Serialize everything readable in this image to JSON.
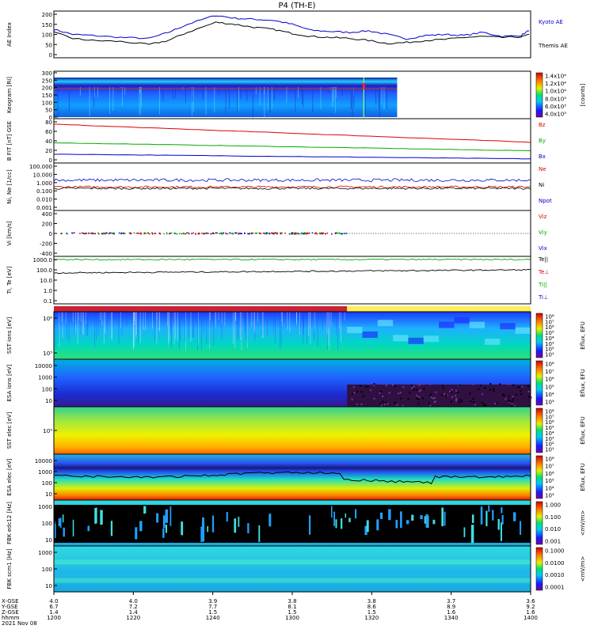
{
  "title": "P4 (TH-E)",
  "date_label": "2021 Nov 08",
  "colors": {
    "kyoto": "#0000cc",
    "themis": "#000000",
    "bz": "#dd0000",
    "by": "#00aa00",
    "bx": "#0000cc",
    "ne": "#dd0000",
    "ni": "#000000",
    "npot": "#0000cc",
    "vx": "#0000cc",
    "vy": "#00aa00",
    "vz": "#dd0000",
    "mode_fast": "#cc2233",
    "mode_slow": "#ffee55"
  },
  "chart_data": [
    {
      "name": "ae_index",
      "type": "line",
      "ylabel": "AE Index",
      "ylim": [
        0,
        200
      ],
      "yticks": [
        "200",
        "150",
        "100",
        "50",
        "0"
      ],
      "x": [
        0,
        4,
        8,
        14,
        20,
        24,
        28,
        34,
        38,
        42,
        46,
        50,
        54,
        58,
        62,
        66,
        70,
        74,
        78,
        82,
        86,
        90,
        94,
        98,
        100
      ],
      "series": [
        {
          "name": "Kyoto AE",
          "values": [
            125,
            100,
            95,
            85,
            80,
            110,
            150,
            195,
            180,
            175,
            170,
            150,
            120,
            115,
            110,
            118,
            100,
            78,
            95,
            100,
            95,
            110,
            90,
            95,
            125
          ]
        },
        {
          "name": "Themis AE",
          "values": [
            110,
            80,
            70,
            65,
            50,
            70,
            110,
            160,
            150,
            135,
            125,
            105,
            90,
            85,
            80,
            70,
            55,
            60,
            70,
            75,
            85,
            90,
            85,
            88,
            100
          ]
        }
      ]
    },
    {
      "name": "keogram",
      "type": "heatmap",
      "ylabel": "Keogram [RI]",
      "yticks": [
        "300",
        "250",
        "200",
        "150",
        "100",
        "50",
        "0"
      ],
      "colorbar": {
        "label": "[counts]",
        "ticks": [
          "1.4x10⁴",
          "1.2x10⁴",
          "1.0x10⁴",
          "8.0x10³",
          "6.0x10³",
          "4.0x10³"
        ]
      }
    },
    {
      "name": "b_field",
      "type": "line",
      "ylabel": "B FIT [nT] GSE",
      "ylim": [
        0,
        80
      ],
      "yticks": [
        "80",
        "60",
        "40",
        "20",
        "0"
      ],
      "series": [
        {
          "name": "Bz",
          "start": 75,
          "end": 37
        },
        {
          "name": "By",
          "start": 36,
          "end": 19
        },
        {
          "name": "Bx",
          "start": 12,
          "end": 2
        }
      ]
    },
    {
      "name": "density",
      "type": "line",
      "ylabel": "Ni, Ne [1/cc]",
      "scale": "log",
      "yticks": [
        "100.000",
        "10.000",
        "1.000",
        "0.100",
        "0.010",
        "0.001"
      ],
      "series": [
        {
          "name": "Ne",
          "level": 0.3
        },
        {
          "name": "Ni",
          "level": 0.2
        },
        {
          "name": "Npot",
          "level": 2.0
        }
      ]
    },
    {
      "name": "velocity",
      "type": "scatter",
      "ylabel": "Vi [km/s]",
      "ylim": [
        -500,
        500
      ],
      "yticks": [
        "400",
        "200",
        "0",
        "-200",
        "-400"
      ],
      "series": [
        {
          "name": "Viz"
        },
        {
          "name": "Viy"
        },
        {
          "name": "Vix"
        }
      ]
    },
    {
      "name": "temperature",
      "type": "line",
      "ylabel": "Ti, Te [eV]",
      "scale": "log",
      "yticks": [
        "1000.0",
        "100.0",
        "10.0",
        "1.0",
        "0.1"
      ],
      "series": [
        {
          "name": "Te||",
          "level": 1000
        },
        {
          "name": "Te⊥",
          "level": 1000
        },
        {
          "name": "Ti||",
          "level": 50
        },
        {
          "name": "Ti⊥",
          "level": 50
        }
      ]
    },
    {
      "name": "sst_ion",
      "type": "heatmap",
      "ylabel": "SST ions [eV]",
      "yticks": [
        "10⁶",
        "10⁵"
      ],
      "colorbar": {
        "label": "Eflux, EFU",
        "ticks": [
          "10⁸",
          "10⁷",
          "10⁶",
          "10⁵",
          "10⁴",
          "10³",
          "10²",
          "10¹"
        ]
      }
    },
    {
      "name": "esa_ion",
      "type": "heatmap",
      "ylabel": "ESA ions [eV]",
      "yticks": [
        "10000",
        "1000",
        "100",
        "10"
      ],
      "colorbar": {
        "label": "Eflux, EFU",
        "ticks": [
          "10⁸",
          "10⁷",
          "10⁶",
          "10⁵",
          "10⁴",
          "10³"
        ]
      }
    },
    {
      "name": "sst_elec",
      "type": "heatmap",
      "ylabel": "SST elec [eV]",
      "yticks": [
        "10⁵"
      ],
      "colorbar": {
        "label": "Eflux, EFU",
        "ticks": [
          "10⁸",
          "10⁷",
          "10⁶",
          "10⁵",
          "10⁴",
          "10³",
          "10²",
          "10¹"
        ]
      }
    },
    {
      "name": "esa_elec",
      "type": "heatmap",
      "ylabel": "ESA elec [eV]",
      "yticks": [
        "10000",
        "1000",
        "100",
        "10"
      ],
      "colorbar": {
        "label": "Eflux, EFU",
        "ticks": [
          "10⁸",
          "10⁷",
          "10⁶",
          "10⁵",
          "10⁴",
          "10³"
        ]
      }
    },
    {
      "name": "fbk_edc",
      "type": "heatmap",
      "ylabel": "FBK edc12 [Hz]",
      "yticks": [
        "1000",
        "100",
        "10"
      ],
      "colorbar": {
        "label": "<mV/m>",
        "ticks": [
          "1.000",
          "0.100",
          "0.010",
          "0.001"
        ]
      }
    },
    {
      "name": "fbk_scm",
      "type": "heatmap",
      "ylabel": "FBK scm1 [Hz]",
      "yticks": [
        "1000",
        "100",
        "10"
      ],
      "colorbar": {
        "label": "<mV/m>",
        "ticks": [
          "0.1000",
          "0.0100",
          "0.0010",
          "0.0001"
        ]
      }
    }
  ],
  "legends": {
    "ae": [
      "Kyoto AE",
      "Themis AE"
    ],
    "b": [
      "Bz",
      "By",
      "Bx"
    ],
    "n": [
      "Ne",
      "Ni",
      "Npot"
    ],
    "v": [
      "Viz",
      "Viy",
      "Vix"
    ],
    "t": [
      "Te||",
      "Te⊥",
      "Ti||",
      "Ti⊥"
    ]
  },
  "x_axis": {
    "row_labels": [
      "X-GSE",
      "Y-GSE",
      "Z-GSE",
      "hhmm",
      "2021 Nov 08"
    ],
    "ticks": [
      {
        "x": "4.0",
        "y": "6.7",
        "z": "1.4",
        "time": "1200"
      },
      {
        "x": "4.0",
        "y": "7.2",
        "z": "1.4",
        "time": "1220"
      },
      {
        "x": "3.9",
        "y": "7.7",
        "z": "1.5",
        "time": "1240"
      },
      {
        "x": "3.8",
        "y": "8.1",
        "z": "1.5",
        "time": "1300"
      },
      {
        "x": "3.8",
        "y": "8.6",
        "z": "1.5",
        "time": "1320"
      },
      {
        "x": "3.7",
        "y": "8.9",
        "z": "1.6",
        "time": "1340"
      },
      {
        "x": "3.6",
        "y": "9.2",
        "z": "1.6",
        "time": "1400"
      }
    ]
  }
}
